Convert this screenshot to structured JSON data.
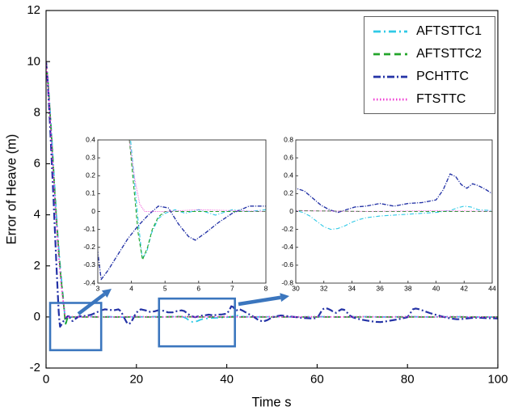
{
  "chart_data": {
    "type": "line",
    "title": "",
    "xlabel": "Time s",
    "ylabel": "Error of Heave (m)",
    "xlim": [
      0,
      100
    ],
    "ylim": [
      -2,
      12
    ],
    "xticks": [
      0,
      20,
      40,
      60,
      80,
      100
    ],
    "yticks": [
      -2,
      0,
      2,
      4,
      6,
      8,
      10,
      12
    ],
    "grid": false,
    "legend": {
      "position": "top-right",
      "entries": [
        "AFTSTTC1",
        "AFTSTTC2",
        "PCHTTC",
        "FTSTTC"
      ]
    },
    "series": [
      {
        "name": "AFTSTTC1",
        "color": "#2FC9E6",
        "dash": [
          9,
          4,
          2,
          4
        ],
        "width": 1.8,
        "points": [
          [
            0,
            10
          ],
          [
            0.4,
            9.3
          ],
          [
            0.8,
            8.3
          ],
          [
            1.2,
            7.2
          ],
          [
            1.6,
            6.0
          ],
          [
            2.0,
            4.8
          ],
          [
            2.4,
            3.7
          ],
          [
            2.8,
            2.7
          ],
          [
            3.2,
            1.85
          ],
          [
            3.6,
            1.1
          ],
          [
            3.9,
            0.55
          ],
          [
            4.05,
            0.25
          ],
          [
            4.2,
            -0.05
          ],
          [
            4.32,
            -0.26
          ],
          [
            4.45,
            -0.23
          ],
          [
            4.6,
            -0.12
          ],
          [
            4.8,
            -0.04
          ],
          [
            5.0,
            -0.01
          ],
          [
            5.3,
            0.01
          ],
          [
            5.6,
            -0.01
          ],
          [
            6,
            0.01
          ],
          [
            6.5,
            -0.02
          ],
          [
            7,
            0.01
          ],
          [
            7.5,
            0
          ],
          [
            8,
            0.01
          ],
          [
            9,
            0
          ],
          [
            10,
            0.01
          ],
          [
            12,
            0
          ],
          [
            14,
            0.01
          ],
          [
            16,
            -0.01
          ],
          [
            18,
            0
          ],
          [
            20,
            0.01
          ],
          [
            22,
            0
          ],
          [
            24,
            0.01
          ],
          [
            26,
            0
          ],
          [
            28,
            0.01
          ],
          [
            29.5,
            0.02
          ],
          [
            30,
            0.01
          ],
          [
            30.5,
            -0.01
          ],
          [
            31,
            -0.05
          ],
          [
            31.5,
            -0.11
          ],
          [
            32,
            -0.17
          ],
          [
            32.5,
            -0.2
          ],
          [
            33,
            -0.19
          ],
          [
            33.5,
            -0.16
          ],
          [
            34,
            -0.12
          ],
          [
            34.5,
            -0.09
          ],
          [
            35,
            -0.07
          ],
          [
            36,
            -0.05
          ],
          [
            37,
            -0.04
          ],
          [
            38,
            -0.03
          ],
          [
            39,
            -0.02
          ],
          [
            40,
            -0.01
          ],
          [
            41,
            0.01
          ],
          [
            41.5,
            0.04
          ],
          [
            42,
            0.06
          ],
          [
            42.5,
            0.05
          ],
          [
            43,
            0.02
          ],
          [
            44,
            0.01
          ],
          [
            46,
            0
          ],
          [
            50,
            0.01
          ],
          [
            55,
            0
          ],
          [
            60,
            0.01
          ],
          [
            65,
            0
          ],
          [
            70,
            0.01
          ],
          [
            75,
            0
          ],
          [
            80,
            0.01
          ],
          [
            85,
            0
          ],
          [
            90,
            0.01
          ],
          [
            95,
            0
          ],
          [
            100,
            0
          ]
        ]
      },
      {
        "name": "AFTSTTC2",
        "color": "#23A52B",
        "dash": [
          8,
          5
        ],
        "width": 1.8,
        "points": [
          [
            0,
            10
          ],
          [
            0.4,
            9.25
          ],
          [
            0.8,
            8.2
          ],
          [
            1.2,
            7.05
          ],
          [
            1.6,
            5.85
          ],
          [
            2.0,
            4.65
          ],
          [
            2.4,
            3.55
          ],
          [
            2.8,
            2.55
          ],
          [
            3.2,
            1.7
          ],
          [
            3.6,
            1.0
          ],
          [
            3.9,
            0.48
          ],
          [
            4.05,
            0.18
          ],
          [
            4.2,
            -0.12
          ],
          [
            4.33,
            -0.27
          ],
          [
            4.48,
            -0.2
          ],
          [
            4.62,
            -0.1
          ],
          [
            4.8,
            -0.03
          ],
          [
            5,
            0
          ],
          [
            6,
            0
          ],
          [
            8,
            0
          ],
          [
            10,
            0
          ],
          [
            15,
            0
          ],
          [
            20,
            0
          ],
          [
            25,
            0
          ],
          [
            30,
            0.01
          ],
          [
            35,
            0
          ],
          [
            40,
            0
          ],
          [
            45,
            0
          ],
          [
            50,
            0
          ],
          [
            60,
            0
          ],
          [
            70,
            0
          ],
          [
            80,
            0
          ],
          [
            90,
            0
          ],
          [
            100,
            0
          ]
        ]
      },
      {
        "name": "PCHTTC",
        "color": "#2433A6",
        "dash": [
          9,
          3,
          2,
          3
        ],
        "width": 2.2,
        "points": [
          [
            0,
            10
          ],
          [
            0.4,
            9.1
          ],
          [
            0.8,
            7.8
          ],
          [
            1.2,
            6.3
          ],
          [
            1.6,
            4.8
          ],
          [
            2.0,
            3.2
          ],
          [
            2.3,
            2.0
          ],
          [
            2.6,
            0.9
          ],
          [
            2.8,
            0.2
          ],
          [
            2.95,
            -0.15
          ],
          [
            3.1,
            -0.38
          ],
          [
            3.3,
            -0.33
          ],
          [
            3.6,
            -0.24
          ],
          [
            3.9,
            -0.15
          ],
          [
            4.2,
            -0.08
          ],
          [
            4.5,
            -0.02
          ],
          [
            4.8,
            0.03
          ],
          [
            5.1,
            0.02
          ],
          [
            5.4,
            -0.07
          ],
          [
            5.7,
            -0.14
          ],
          [
            5.9,
            -0.16
          ],
          [
            6.2,
            -0.12
          ],
          [
            6.6,
            -0.06
          ],
          [
            7.0,
            -0.01
          ],
          [
            7.5,
            0.03
          ],
          [
            8,
            0.03
          ],
          [
            9,
            0.05
          ],
          [
            10,
            0.09
          ],
          [
            11,
            0.16
          ],
          [
            12,
            0.25
          ],
          [
            13,
            0.3
          ],
          [
            14,
            0.28
          ],
          [
            15,
            0.26
          ],
          [
            16,
            0.3
          ],
          [
            16.6,
            0.22
          ],
          [
            17.2,
            0
          ],
          [
            17.8,
            -0.2
          ],
          [
            18.3,
            -0.28
          ],
          [
            18.8,
            -0.22
          ],
          [
            19.3,
            -0.05
          ],
          [
            19.8,
            0.12
          ],
          [
            20.4,
            0.24
          ],
          [
            21,
            0.3
          ],
          [
            22,
            0.26
          ],
          [
            23,
            0.2
          ],
          [
            24,
            0.22
          ],
          [
            25,
            0.27
          ],
          [
            26,
            0.24
          ],
          [
            27,
            0.18
          ],
          [
            28,
            0.18
          ],
          [
            29,
            0.23
          ],
          [
            30,
            0.26
          ],
          [
            30.6,
            0.23
          ],
          [
            31.2,
            0.15
          ],
          [
            31.8,
            0.07
          ],
          [
            32.4,
            0.02
          ],
          [
            33,
            -0.01
          ],
          [
            33.6,
            0.02
          ],
          [
            34.2,
            0.05
          ],
          [
            35,
            0.06
          ],
          [
            36,
            0.09
          ],
          [
            37,
            0.06
          ],
          [
            38,
            0.09
          ],
          [
            39,
            0.1
          ],
          [
            40,
            0.13
          ],
          [
            40.5,
            0.24
          ],
          [
            41,
            0.42
          ],
          [
            41.4,
            0.39
          ],
          [
            41.8,
            0.3
          ],
          [
            42.2,
            0.26
          ],
          [
            42.6,
            0.31
          ],
          [
            43,
            0.29
          ],
          [
            43.5,
            0.25
          ],
          [
            44,
            0.2
          ],
          [
            45,
            0.1
          ],
          [
            46,
            0
          ],
          [
            47,
            -0.12
          ],
          [
            48,
            -0.18
          ],
          [
            49,
            -0.12
          ],
          [
            50,
            -0.02
          ],
          [
            51,
            0.03
          ],
          [
            52,
            0.06
          ],
          [
            53,
            0.04
          ],
          [
            54,
            0.02
          ],
          [
            55,
            0
          ],
          [
            56,
            -0.02
          ],
          [
            57,
            -0.04
          ],
          [
            58,
            -0.05
          ],
          [
            59,
            -0.06
          ],
          [
            60,
            -0.04
          ],
          [
            60.6,
            0.12
          ],
          [
            61.2,
            0.3
          ],
          [
            61.8,
            0.35
          ],
          [
            62.4,
            0.32
          ],
          [
            63,
            0.27
          ],
          [
            63.6,
            0.2
          ],
          [
            64.2,
            0.16
          ],
          [
            64.8,
            0.24
          ],
          [
            65.4,
            0.3
          ],
          [
            66,
            0.28
          ],
          [
            66.6,
            0.18
          ],
          [
            67.2,
            0.06
          ],
          [
            68,
            -0.02
          ],
          [
            69,
            -0.07
          ],
          [
            70,
            -0.11
          ],
          [
            71,
            -0.14
          ],
          [
            72,
            -0.17
          ],
          [
            73,
            -0.19
          ],
          [
            74,
            -0.2
          ],
          [
            75,
            -0.18
          ],
          [
            76,
            -0.15
          ],
          [
            77,
            -0.12
          ],
          [
            78,
            -0.09
          ],
          [
            79,
            -0.05
          ],
          [
            80,
            -0.01
          ],
          [
            80.6,
            0.14
          ],
          [
            81.2,
            0.3
          ],
          [
            81.8,
            0.33
          ],
          [
            82.4,
            0.31
          ],
          [
            83,
            0.28
          ],
          [
            84,
            0.21
          ],
          [
            85,
            0.15
          ],
          [
            86,
            0.1
          ],
          [
            87,
            0.05
          ],
          [
            88,
            0
          ],
          [
            89,
            -0.04
          ],
          [
            90,
            -0.07
          ],
          [
            91,
            -0.09
          ],
          [
            92,
            -0.08
          ],
          [
            93,
            -0.06
          ],
          [
            94,
            -0.04
          ],
          [
            95,
            -0.03
          ],
          [
            96,
            -0.03
          ],
          [
            97,
            -0.04
          ],
          [
            98,
            -0.05
          ],
          [
            99,
            -0.05
          ],
          [
            100,
            -0.06
          ]
        ]
      },
      {
        "name": "FTSTTC",
        "color": "#F03BD4",
        "dash": [
          1.5,
          2.5
        ],
        "width": 1.8,
        "points": [
          [
            0,
            10
          ],
          [
            0.4,
            9.2
          ],
          [
            0.8,
            8.1
          ],
          [
            1.2,
            6.9
          ],
          [
            1.6,
            5.7
          ],
          [
            2.0,
            4.5
          ],
          [
            2.4,
            3.4
          ],
          [
            2.8,
            2.4
          ],
          [
            3.2,
            1.55
          ],
          [
            3.6,
            0.9
          ],
          [
            3.9,
            0.45
          ],
          [
            4.1,
            0.18
          ],
          [
            4.25,
            0.04
          ],
          [
            4.4,
            0
          ],
          [
            5,
            0
          ],
          [
            6,
            0.01
          ],
          [
            8,
            0
          ],
          [
            10,
            0.01
          ],
          [
            15,
            0
          ],
          [
            20,
            0.01
          ],
          [
            25,
            0
          ],
          [
            30,
            0.01
          ],
          [
            35,
            0
          ],
          [
            40,
            0.01
          ],
          [
            45,
            0
          ],
          [
            50,
            0.01
          ],
          [
            55,
            0
          ],
          [
            60,
            0.01
          ],
          [
            65,
            0
          ],
          [
            70,
            0.01
          ],
          [
            75,
            0
          ],
          [
            80,
            0.01
          ],
          [
            85,
            0
          ],
          [
            90,
            0.01
          ],
          [
            95,
            0
          ],
          [
            100,
            0
          ]
        ]
      }
    ],
    "insets": [
      {
        "name": "zoom-inset-left",
        "xlim": [
          3,
          8
        ],
        "ylim": [
          -0.4,
          0.4
        ],
        "xticks": [
          3,
          4,
          5,
          6,
          7,
          8
        ],
        "yticks": [
          -0.4,
          -0.3,
          -0.2,
          -0.1,
          0,
          0.1,
          0.2,
          0.3,
          0.4
        ]
      },
      {
        "name": "zoom-inset-right",
        "xlim": [
          30,
          44
        ],
        "ylim": [
          -0.8,
          0.8
        ],
        "xticks": [
          30,
          32,
          34,
          36,
          38,
          40,
          42,
          44
        ],
        "yticks": [
          -0.8,
          -0.6,
          -0.4,
          -0.2,
          0,
          0.2,
          0.4,
          0.6,
          0.8
        ]
      }
    ],
    "annotations": {
      "color": "#3B76BE",
      "zoom_rects": [
        {
          "x0": 0.9,
          "x1": 12.2,
          "y0": -1.3,
          "y1": 0.55
        },
        {
          "x0": 25,
          "x1": 41.8,
          "y0": -1.15,
          "y1": 0.72
        }
      ]
    }
  }
}
